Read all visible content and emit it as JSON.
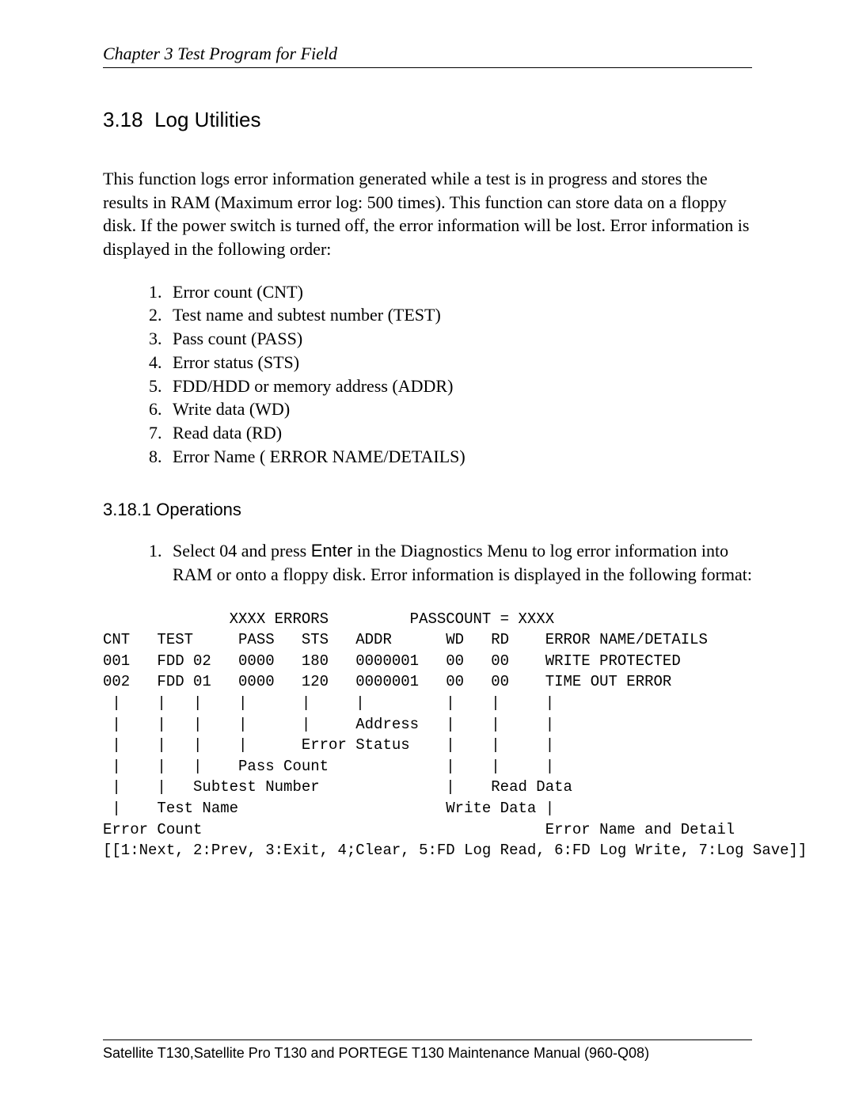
{
  "header": {
    "chapter": "Chapter 3 Test Program for Field"
  },
  "section": {
    "number": "3.18",
    "title": "Log Utilities",
    "intro": "This function logs error information generated while a test is in progress and stores the results in RAM (Maximum error log: 500 times). This function can store data on a floppy disk. If the power switch is turned off, the error information will be lost. Error information is displayed in the following order:",
    "order_list": [
      "Error count (CNT)",
      "Test name and subtest number (TEST)",
      "Pass count (PASS)",
      "Error status (STS)",
      "FDD/HDD or memory address (ADDR)",
      "Write data (WD)",
      "Read data (RD)",
      "Error Name ( ERROR NAME/DETAILS)"
    ]
  },
  "subsection": {
    "number": "3.18.1",
    "title": "Operations",
    "step1_prefix": "Select 04 and press ",
    "step1_key": "Enter",
    "step1_suffix": " in the Diagnostics Menu to log error information into RAM or onto a floppy disk. Error information is displayed in the following format:"
  },
  "log": {
    "line_top": "              XXXX ERRORS         PASSCOUNT = XXXX",
    "line_blank": "",
    "line_hdr": "CNT   TEST     PASS   STS   ADDR      WD   RD    ERROR NAME/DETAILS",
    "line_r1": "001   FDD 02   0000   180   0000001   00   00    WRITE PROTECTED",
    "line_r2": "002   FDD 01   0000   120   0000001   00   00    TIME OUT ERROR",
    "line_p1": " |    |   |    |      |     |         |    |     |",
    "line_p2": " |    |   |    |      |     Address   |    |     |",
    "line_p3": " |    |   |    |      Error Status    |    |     |",
    "line_p4": " |    |   |    Pass Count             |    |     |",
    "line_p5": " |    |   Subtest Number              |    Read Data",
    "line_p6": " |    Test Name                       Write Data |",
    "line_p7": "Error Count                                      Error Name and Detail",
    "line_menu": "[[1:Next, 2:Prev, 3:Exit, 4;Clear, 5:FD Log Read, 6:FD Log Write, 7:Log Save]]"
  },
  "footer": {
    "text": "Satellite T130,Satellite Pro T130 and PORTEGE T130 Maintenance Manual (960-Q08)"
  }
}
